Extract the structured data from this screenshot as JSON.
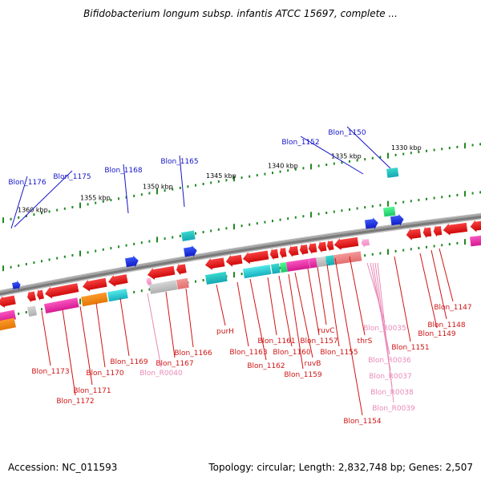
{
  "title": "Bifidobacterium longum subsp. infantis ATCC 15697, complete ...",
  "footer": {
    "accession": "Accession: NC_011593",
    "summary": "Topology: circular; Length: 2,832,748 bp; Genes: 2,507"
  },
  "colors": {
    "backbone": "#7a7a7a",
    "tick": "#228822",
    "forward_label": "#1515c8",
    "reverse_label": "#d01515",
    "rna_label": "#e98ab8",
    "gene_red": "#ee1010",
    "gene_blue": "#1530e6"
  },
  "scale_labels": [
    "1330 kbp",
    "1335 kbp",
    "1340 kbp",
    "1345 kbp",
    "1350 kbp",
    "1355 kbp",
    "1360 kbp"
  ],
  "forward_genes": [
    "Blon_1150",
    "Blon_1152",
    "Blon_1165",
    "Blon_1168",
    "Blon_1175",
    "Blon_1176"
  ],
  "reverse_genes": [
    "Blon_1147",
    "Blon_1148",
    "Blon_1149",
    "Blon_1151",
    "thrS",
    "Blon_1154",
    "Blon_1155",
    "ruvC",
    "Blon_1157",
    "ruvB",
    "Blon_1159",
    "Blon_1160",
    "Blon_1161",
    "Blon_1162",
    "Blon_1163",
    "purH",
    "Blon_1166",
    "Blon_1167",
    "Blon_1169",
    "Blon_1170",
    "Blon_1171",
    "Blon_1172",
    "Blon_1173"
  ],
  "rna_genes": [
    "Blon_R0035",
    "Blon_R0036",
    "Blon_R0037",
    "Blon_R0038",
    "Blon_R0039",
    "Blon_R0040"
  ]
}
